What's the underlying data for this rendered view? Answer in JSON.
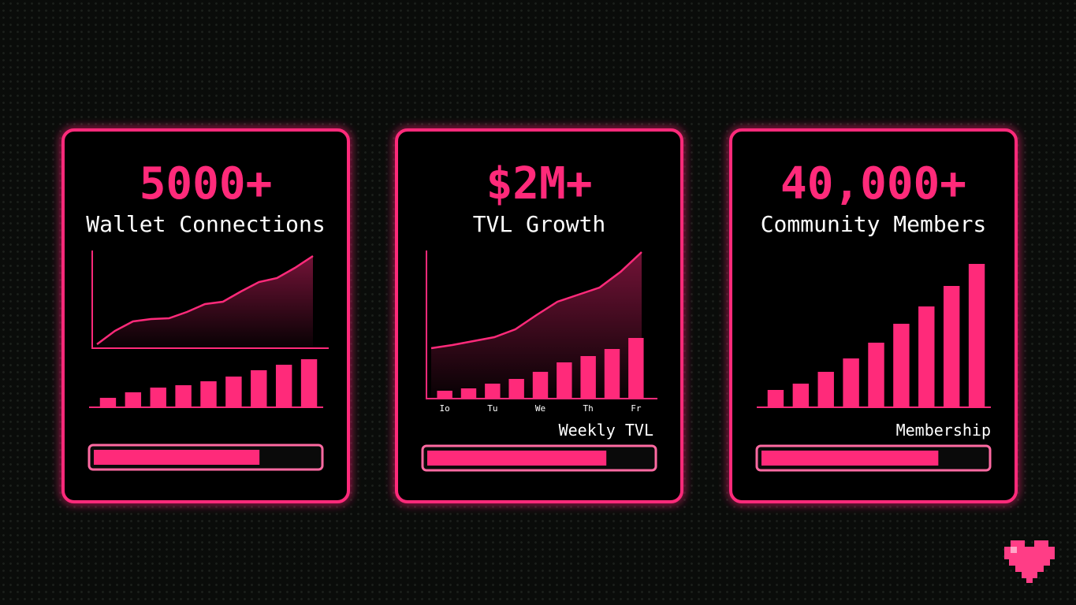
{
  "cards": [
    {
      "stat": "5000+",
      "label": "Wallet Connections",
      "line": {
        "values": [
          5,
          22,
          34,
          37,
          38,
          46,
          56,
          59,
          72,
          84,
          89,
          102,
          117
        ],
        "ylim": [
          0,
          124
        ]
      },
      "bars": {
        "values": [
          12,
          19,
          25,
          28,
          33,
          39,
          47,
          54,
          61
        ],
        "ylim": [
          0,
          100
        ]
      },
      "progress": 74
    },
    {
      "stat": "$2M+",
      "label": "TVL Growth",
      "line": {
        "values": [
          64,
          68,
          73,
          78,
          88,
          106,
          123,
          132,
          141,
          161,
          186
        ],
        "ylim": [
          0,
          188
        ]
      },
      "bars": {
        "values": [
          10,
          13,
          19,
          25,
          34,
          46,
          54,
          63,
          77
        ],
        "ylim": [
          0,
          100
        ],
        "categories": [
          "Io",
          null,
          "Tu",
          null,
          "We",
          null,
          "Th",
          null,
          "Fr"
        ]
      },
      "caption": "Weekly TVL",
      "progress": 80
    },
    {
      "stat": "40,000+",
      "label": "Community Members",
      "bars": {
        "values": [
          22,
          30,
          45,
          62,
          82,
          106,
          128,
          154,
          182
        ],
        "ylim": [
          0,
          200
        ]
      },
      "caption": "Membership",
      "progress": 79
    }
  ]
}
